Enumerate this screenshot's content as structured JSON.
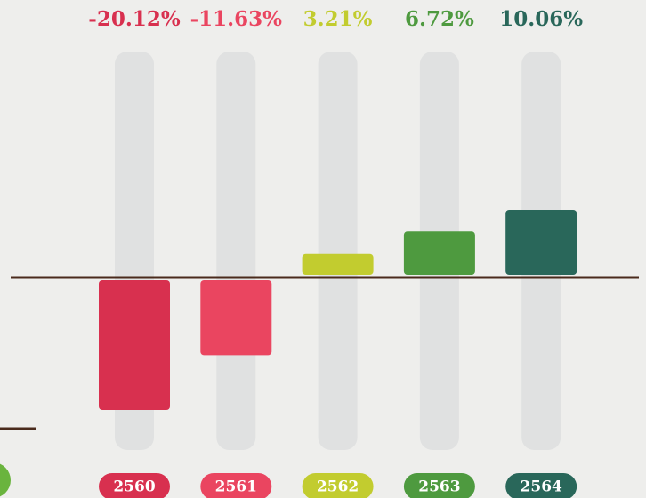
{
  "chart_data": {
    "type": "bar",
    "categories": [
      "2560",
      "2561",
      "2562",
      "2563",
      "2564"
    ],
    "values": [
      -20.12,
      -11.63,
      3.21,
      6.72,
      10.06
    ],
    "value_labels": [
      "-20.12%",
      "-11.63%",
      "3.21%",
      "6.72%",
      "10.06%"
    ],
    "colors": [
      "#d8304f",
      "#ea4560",
      "#c2cc2f",
      "#4e9a3f",
      "#29675a"
    ]
  }
}
